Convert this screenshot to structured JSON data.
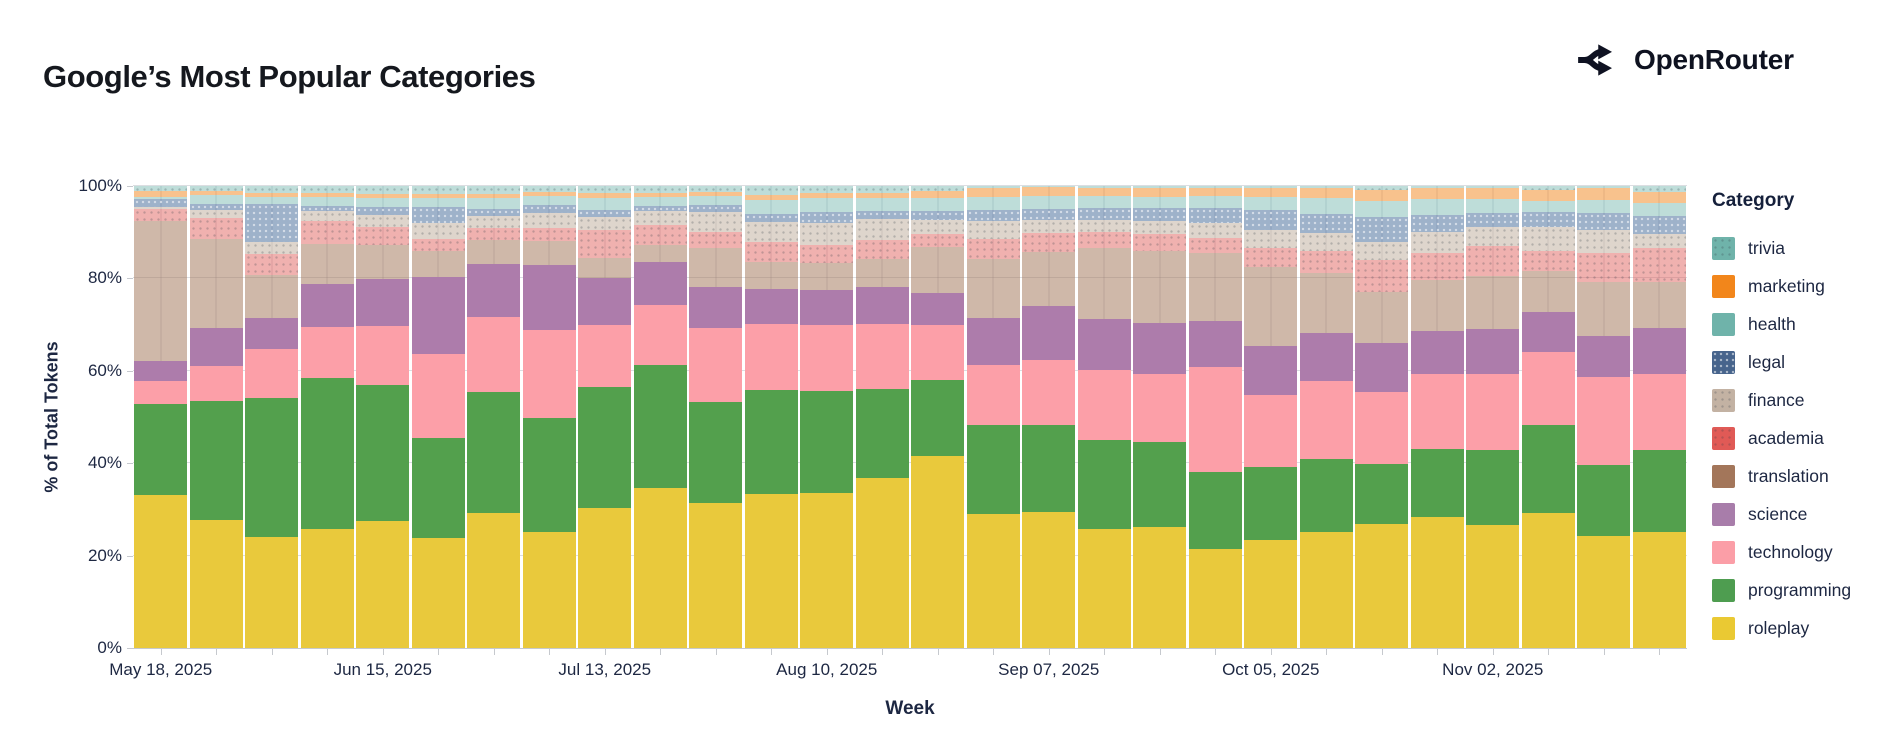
{
  "page": {
    "title": "Google’s Most Popular Categories",
    "brand": "OpenRouter"
  },
  "chart_data": {
    "type": "bar",
    "stacked": true,
    "normalized": true,
    "title": "Google’s Most Popular Categories",
    "xlabel": "Week",
    "ylabel": "% of Total Tokens",
    "legend_title": "Category",
    "legend_position": "right",
    "grid": true,
    "ylim": [
      0,
      100
    ],
    "y_ticks": [
      "0%",
      "20%",
      "40%",
      "60%",
      "80%",
      "100%"
    ],
    "x_tick_labels": [
      "May 18, 2025",
      "Jun 15, 2025",
      "Jul 13, 2025",
      "Aug 10, 2025",
      "Sep 07, 2025",
      "Oct 05, 2025",
      "Nov 02, 2025"
    ],
    "x_tick_every": 4,
    "weeks": [
      "2025-05-18",
      "2025-05-25",
      "2025-06-01",
      "2025-06-08",
      "2025-06-15",
      "2025-06-22",
      "2025-06-29",
      "2025-07-06",
      "2025-07-13",
      "2025-07-20",
      "2025-07-27",
      "2025-08-03",
      "2025-08-10",
      "2025-08-17",
      "2025-08-24",
      "2025-08-31",
      "2025-09-07",
      "2025-09-14",
      "2025-09-21",
      "2025-09-28",
      "2025-10-05",
      "2025-10-12",
      "2025-10-19",
      "2025-10-26",
      "2025-11-02",
      "2025-11-09",
      "2025-11-16",
      "2025-11-23"
    ],
    "series": [
      {
        "name": "trivia",
        "color": "#6FB3AA",
        "bar_color": "rgba(111,179,170,0.45)",
        "texture": "dots-dark",
        "values": [
          1.1,
          1.0,
          1.5,
          1.6,
          1.8,
          1.8,
          1.7,
          1.4,
          1.6,
          1.6,
          1.4,
          2.0,
          1.6,
          1.6,
          1.0,
          0.4,
          0.3,
          0.5,
          0.4,
          0.5,
          0.4,
          0.5,
          0.8,
          0.5,
          0.4,
          0.9,
          0.4,
          1.3
        ]
      },
      {
        "name": "marketing",
        "color": "#F2861B",
        "bar_color": "rgba(242,134,27,0.5)",
        "texture": null,
        "values": [
          1.2,
          1.0,
          0.8,
          0.7,
          0.8,
          0.8,
          1.0,
          0.8,
          1.1,
          0.7,
          0.7,
          1.1,
          1.1,
          1.1,
          1.7,
          2.0,
          1.9,
          1.7,
          1.9,
          1.7,
          2.0,
          2.0,
          2.5,
          2.4,
          2.4,
          2.4,
          2.6,
          2.3
        ]
      },
      {
        "name": "health",
        "color": "#6FB3AA",
        "bar_color": "rgba(111,179,170,0.45)",
        "texture": null,
        "values": [
          0.5,
          1.8,
          1.5,
          2.1,
          2.0,
          2.0,
          2.2,
          1.9,
          2.6,
          2.1,
          2.1,
          2.9,
          2.9,
          2.8,
          2.8,
          2.7,
          2.7,
          2.5,
          2.5,
          2.6,
          2.9,
          3.6,
          3.4,
          3.3,
          3.0,
          2.3,
          2.9,
          2.9
        ]
      },
      {
        "name": "legal",
        "color": "#47648C",
        "bar_color": "rgba(62,101,150,0.5)",
        "texture": "dots-light",
        "values": [
          1.8,
          1.4,
          8.3,
          1.1,
          1.6,
          3.4,
          1.7,
          1.8,
          1.4,
          1.1,
          1.4,
          1.8,
          2.5,
          1.6,
          1.8,
          2.5,
          2.5,
          2.7,
          2.7,
          3.3,
          4.2,
          4.0,
          5.4,
          3.8,
          3.1,
          3.3,
          3.7,
          4.0
        ]
      },
      {
        "name": "finance",
        "color": "#C3B2A3",
        "bar_color": "rgba(195,178,163,0.55)",
        "texture": "dots-dark",
        "values": [
          0.4,
          1.7,
          2.7,
          2.1,
          2.6,
          3.4,
          2.5,
          3.1,
          2.9,
          2.9,
          4.3,
          4.3,
          4.7,
          4.7,
          3.0,
          3.9,
          2.7,
          2.6,
          3.0,
          3.1,
          3.9,
          4.0,
          4.0,
          4.6,
          4.1,
          5.2,
          4.9,
          3.0
        ]
      },
      {
        "name": "academia",
        "color": "#E05A56",
        "bar_color": "rgba(224,90,86,0.47)",
        "texture": "dots-dark",
        "values": [
          2.5,
          4.5,
          4.5,
          4.9,
          3.9,
          2.6,
          2.7,
          3.0,
          6.1,
          4.3,
          3.6,
          4.3,
          3.8,
          4.0,
          3.0,
          4.2,
          4.2,
          3.4,
          3.5,
          3.4,
          4.2,
          4.7,
          6.8,
          5.7,
          6.4,
          4.4,
          6.3,
          7.3
        ]
      },
      {
        "name": "translation",
        "color": "#A3765A",
        "bar_color": "rgba(163,118,90,0.52)",
        "texture": null,
        "values": [
          30.3,
          19.3,
          9.2,
          8.7,
          7.4,
          5.8,
          5.2,
          5.2,
          4.3,
          3.8,
          8.4,
          6.0,
          6.0,
          6.1,
          9.9,
          12.9,
          11.7,
          15.5,
          15.7,
          14.6,
          17.0,
          13.0,
          11.2,
          11.1,
          11.5,
          8.8,
          11.6,
          9.9
        ]
      },
      {
        "name": "science",
        "color": "#A87DAA",
        "bar_color": "#AD7CAB",
        "texture": null,
        "values": [
          4.4,
          8.3,
          6.7,
          9.4,
          10.2,
          16.5,
          11.3,
          13.9,
          10.0,
          9.2,
          8.8,
          7.4,
          7.6,
          8.0,
          6.8,
          10.2,
          11.7,
          11.0,
          11.0,
          10.0,
          10.7,
          10.4,
          10.5,
          9.4,
          9.9,
          8.6,
          9.0,
          10.1
        ]
      },
      {
        "name": "technology",
        "color": "#FB9EA7",
        "bar_color": "#FC9FA8",
        "texture": null,
        "values": [
          5.0,
          7.6,
          10.7,
          11.0,
          12.7,
          18.3,
          16.3,
          19.1,
          13.5,
          13.0,
          16.1,
          14.4,
          14.2,
          14.0,
          12.1,
          12.9,
          14.1,
          15.0,
          14.7,
          22.8,
          15.6,
          17.0,
          15.5,
          16.1,
          16.4,
          15.9,
          18.9,
          16.4
        ]
      },
      {
        "name": "programming",
        "color": "#4E9D50",
        "bar_color": "#53A04D",
        "texture": null,
        "values": [
          19.8,
          25.8,
          30.0,
          32.7,
          29.6,
          21.6,
          26.2,
          24.7,
          26.3,
          26.7,
          21.9,
          22.4,
          22.1,
          19.4,
          16.4,
          19.2,
          18.8,
          19.3,
          18.4,
          16.5,
          15.8,
          15.7,
          13.0,
          14.7,
          16.2,
          19.1,
          15.4,
          17.7
        ]
      },
      {
        "name": "roleplay",
        "color": "#EAC933",
        "bar_color": "#E9C93C",
        "texture": null,
        "values": [
          33.0,
          27.6,
          24.1,
          25.7,
          27.4,
          23.8,
          29.2,
          25.1,
          30.2,
          34.6,
          31.3,
          33.4,
          33.5,
          36.7,
          41.5,
          29.1,
          29.4,
          25.8,
          26.2,
          21.5,
          23.3,
          25.1,
          26.9,
          28.4,
          26.6,
          29.1,
          24.3,
          25.1
        ]
      }
    ]
  }
}
